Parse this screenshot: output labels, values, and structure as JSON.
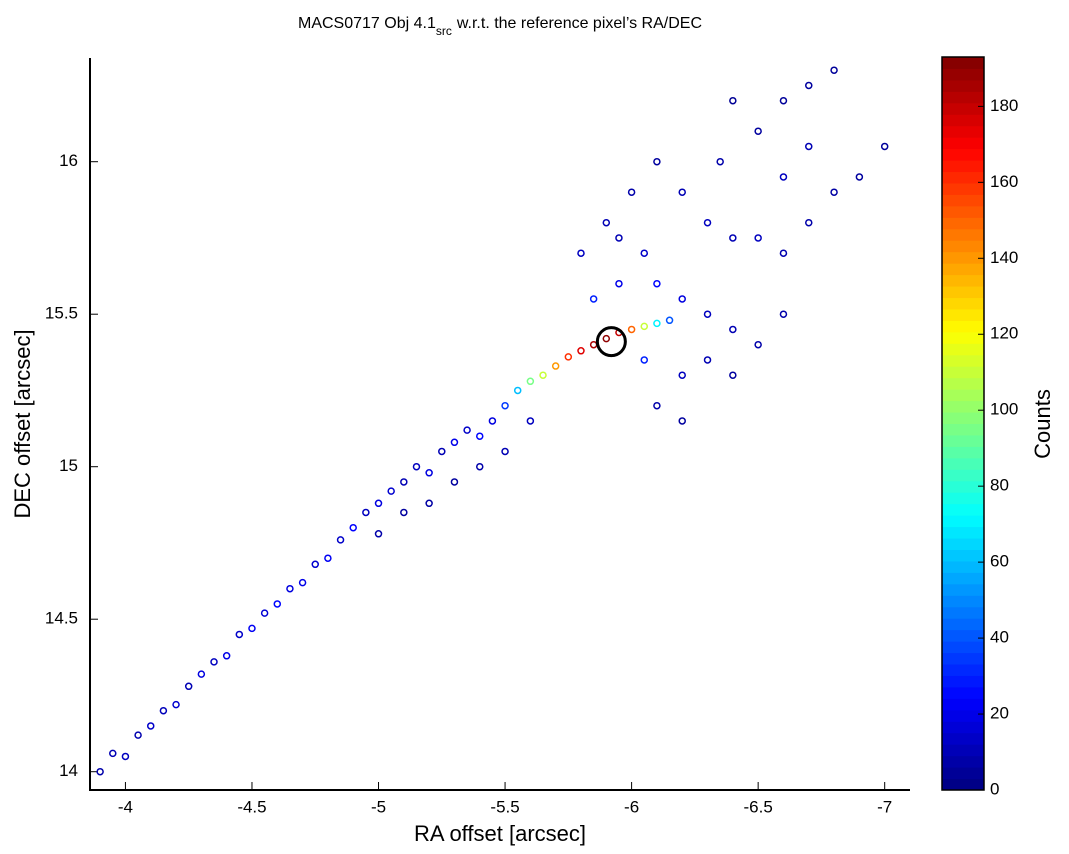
{
  "chart_data": {
    "type": "scatter",
    "title": {
      "text": "MACS0717 Obj 4.1",
      "subscript": "src",
      "suffix": "w.r.t. the reference pixel’s RA/DEC"
    },
    "xlabel": "RA offset [arcsec]",
    "ylabel": "DEC offset [arcsec]",
    "colorbar_label": "Counts",
    "colormap": "jet",
    "xlim": [
      -3.86,
      -7.1
    ],
    "ylim": [
      13.94,
      16.34
    ],
    "clim": [
      0,
      193
    ],
    "xticks": [
      -4,
      -4.5,
      -5,
      -5.5,
      -6,
      -6.5,
      -7
    ],
    "yticks": [
      14,
      14.5,
      15,
      15.5,
      16
    ],
    "cticks": [
      0,
      20,
      40,
      60,
      80,
      100,
      120,
      140,
      160,
      180
    ],
    "highlight": {
      "x": -5.92,
      "y": 15.41
    },
    "x": [
      -3.9,
      -3.95,
      -4.0,
      -4.05,
      -4.1,
      -4.15,
      -4.2,
      -4.25,
      -4.3,
      -4.35,
      -4.4,
      -4.45,
      -4.5,
      -4.55,
      -4.6,
      -4.65,
      -4.7,
      -4.75,
      -4.8,
      -4.85,
      -4.9,
      -4.95,
      -5.0,
      -5.0,
      -5.05,
      -5.1,
      -5.1,
      -5.15,
      -5.2,
      -5.2,
      -5.25,
      -5.3,
      -5.3,
      -5.35,
      -5.4,
      -5.4,
      -5.45,
      -5.5,
      -5.5,
      -5.55,
      -5.6,
      -5.6,
      -5.65,
      -5.7,
      -5.75,
      -5.8,
      -5.85,
      -5.9,
      -5.95,
      -6.0,
      -6.05,
      -6.1,
      -6.15,
      -5.85,
      -5.95,
      -5.8,
      -5.9,
      -6.0,
      -6.05,
      -6.1,
      -6.2,
      -6.3,
      -6.4,
      -6.5,
      -6.6,
      -6.2,
      -6.1,
      -6.2,
      -6.3,
      -6.4,
      -6.1,
      -6.2,
      -6.3,
      -6.4,
      -6.5,
      -6.6,
      -6.7,
      -6.8,
      -6.9,
      -7.0,
      -6.5,
      -6.6,
      -6.7,
      -6.8,
      -6.4,
      -6.7,
      -6.6,
      -6.35,
      -5.95,
      -6.05
    ],
    "y": [
      14.0,
      14.06,
      14.05,
      14.12,
      14.15,
      14.2,
      14.22,
      14.28,
      14.32,
      14.36,
      14.38,
      14.45,
      14.47,
      14.52,
      14.55,
      14.6,
      14.62,
      14.68,
      14.7,
      14.76,
      14.8,
      14.85,
      14.88,
      14.78,
      14.92,
      14.95,
      14.85,
      15.0,
      14.98,
      14.88,
      15.05,
      15.08,
      14.95,
      15.12,
      15.1,
      15.0,
      15.15,
      15.2,
      15.05,
      15.25,
      15.28,
      15.15,
      15.3,
      15.33,
      15.36,
      15.38,
      15.4,
      15.42,
      15.44,
      15.45,
      15.46,
      15.47,
      15.48,
      15.55,
      15.6,
      15.7,
      15.8,
      15.9,
      15.7,
      15.6,
      15.55,
      15.5,
      15.45,
      15.4,
      15.5,
      15.3,
      15.2,
      15.15,
      15.35,
      15.3,
      16.0,
      15.9,
      15.8,
      15.75,
      15.75,
      15.7,
      15.8,
      15.9,
      15.95,
      16.05,
      16.1,
      16.2,
      16.25,
      16.3,
      16.2,
      16.05,
      15.95,
      16.0,
      15.75,
      15.35
    ],
    "values": [
      8,
      10,
      12,
      9,
      14,
      11,
      15,
      10,
      18,
      12,
      20,
      14,
      22,
      16,
      25,
      18,
      20,
      15,
      22,
      14,
      24,
      12,
      18,
      8,
      15,
      10,
      6,
      12,
      18,
      7,
      10,
      20,
      6,
      14,
      25,
      8,
      18,
      35,
      10,
      60,
      95,
      12,
      110,
      140,
      160,
      175,
      185,
      190,
      180,
      150,
      110,
      70,
      40,
      30,
      20,
      12,
      10,
      8,
      14,
      25,
      18,
      12,
      10,
      8,
      8,
      12,
      8,
      6,
      10,
      6,
      6,
      10,
      12,
      10,
      12,
      9,
      8,
      7,
      6,
      5,
      6,
      5,
      6,
      5,
      4,
      10,
      12,
      8,
      10,
      30
    ]
  }
}
